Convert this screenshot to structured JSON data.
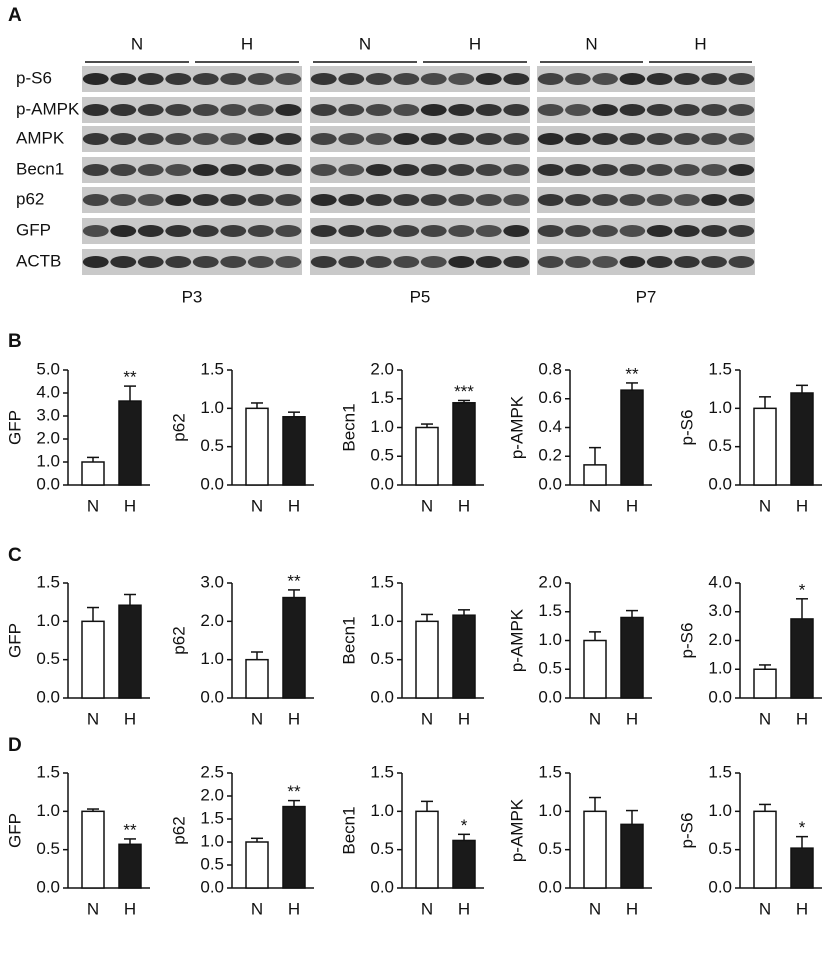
{
  "panel_a": {
    "label": "A",
    "groups": [
      "N",
      "H",
      "N",
      "H",
      "N",
      "H"
    ],
    "rows": [
      "p-S6",
      "p-AMPK",
      "AMPK",
      "Becn1",
      "p62",
      "GFP",
      "ACTB"
    ],
    "timepoints": [
      "P3",
      "P5",
      "P7"
    ]
  },
  "panel_labels": [
    "B",
    "C",
    "D"
  ],
  "chart_data": [
    {
      "type": "bar",
      "ylabel": "GFP",
      "categories": [
        "N",
        "H"
      ],
      "values": [
        1.0,
        3.65
      ],
      "errors": [
        0.2,
        0.65
      ],
      "annotations": [
        null,
        "**"
      ],
      "colors": [
        "#ffffff",
        "#1a1a1a"
      ],
      "ylim": [
        0,
        5
      ],
      "yticks": [
        {
          "value": 0,
          "label": "0.0"
        },
        {
          "value": 1,
          "label": "1.0"
        },
        {
          "value": 2,
          "label": "2.0"
        },
        {
          "value": 3,
          "label": "3.0"
        },
        {
          "value": 4,
          "label": "4.0"
        },
        {
          "value": 5,
          "label": "5.0"
        }
      ]
    },
    {
      "type": "bar",
      "ylabel": "p62",
      "categories": [
        "N",
        "H"
      ],
      "values": [
        1.0,
        0.89
      ],
      "errors": [
        0.07,
        0.06
      ],
      "colors": [
        "#ffffff",
        "#1a1a1a"
      ],
      "ylim": [
        0,
        1.5
      ],
      "yticks": [
        {
          "value": 0,
          "label": "0.0"
        },
        0.5,
        {
          "value": 1,
          "label": "1.0"
        },
        1.5
      ]
    },
    {
      "type": "bar",
      "ylabel": "Becn1",
      "categories": [
        "N",
        "H"
      ],
      "values": [
        1.0,
        1.43
      ],
      "errors": [
        0.06,
        0.04
      ],
      "annotations": [
        null,
        "***"
      ],
      "colors": [
        "#ffffff",
        "#1a1a1a"
      ],
      "ylim": [
        0,
        2
      ],
      "yticks": [
        {
          "value": 0,
          "label": "0.0"
        },
        0.5,
        {
          "value": 1,
          "label": "1.0"
        },
        1.5,
        {
          "value": 2,
          "label": "2.0"
        }
      ]
    },
    {
      "type": "bar",
      "ylabel": "p-AMPK",
      "categories": [
        "N",
        "H"
      ],
      "values": [
        0.14,
        0.66
      ],
      "errors": [
        0.12,
        0.05
      ],
      "annotations": [
        null,
        "**"
      ],
      "colors": [
        "#ffffff",
        "#1a1a1a"
      ],
      "ylim": [
        0,
        0.8
      ],
      "yticks": [
        {
          "value": 0,
          "label": "0.0"
        },
        0.2,
        0.4,
        0.6,
        0.8
      ]
    },
    {
      "type": "bar",
      "ylabel": "p-S6",
      "categories": [
        "N",
        "H"
      ],
      "values": [
        1.0,
        1.2
      ],
      "errors": [
        0.15,
        0.1
      ],
      "colors": [
        "#ffffff",
        "#1a1a1a"
      ],
      "ylim": [
        0,
        1.5
      ],
      "yticks": [
        {
          "value": 0,
          "label": "0.0"
        },
        0.5,
        {
          "value": 1,
          "label": "1.0"
        },
        1.5
      ]
    },
    {
      "type": "bar",
      "ylabel": "GFP",
      "categories": [
        "N",
        "H"
      ],
      "values": [
        1.0,
        1.21
      ],
      "errors": [
        0.18,
        0.14
      ],
      "colors": [
        "#ffffff",
        "#1a1a1a"
      ],
      "ylim": [
        0,
        1.5
      ],
      "yticks": [
        {
          "value": 0,
          "label": "0.0"
        },
        0.5,
        {
          "value": 1,
          "label": "1.0"
        },
        1.5
      ]
    },
    {
      "type": "bar",
      "ylabel": "p62",
      "categories": [
        "N",
        "H"
      ],
      "values": [
        1.0,
        2.62
      ],
      "errors": [
        0.2,
        0.2
      ],
      "annotations": [
        null,
        "**"
      ],
      "colors": [
        "#ffffff",
        "#1a1a1a"
      ],
      "ylim": [
        0,
        3
      ],
      "yticks": [
        {
          "value": 0,
          "label": "0.0"
        },
        {
          "value": 1,
          "label": "1.0"
        },
        {
          "value": 2,
          "label": "2.0"
        },
        {
          "value": 3,
          "label": "3.0"
        }
      ]
    },
    {
      "type": "bar",
      "ylabel": "Becn1",
      "categories": [
        "N",
        "H"
      ],
      "values": [
        1.0,
        1.08
      ],
      "errors": [
        0.09,
        0.07
      ],
      "colors": [
        "#ffffff",
        "#1a1a1a"
      ],
      "ylim": [
        0,
        1.5
      ],
      "yticks": [
        {
          "value": 0,
          "label": "0.0"
        },
        0.5,
        {
          "value": 1,
          "label": "1.0"
        },
        1.5
      ]
    },
    {
      "type": "bar",
      "ylabel": "p-AMPK",
      "categories": [
        "N",
        "H"
      ],
      "values": [
        1.0,
        1.4
      ],
      "errors": [
        0.15,
        0.12
      ],
      "colors": [
        "#ffffff",
        "#1a1a1a"
      ],
      "ylim": [
        0,
        2
      ],
      "yticks": [
        {
          "value": 0,
          "label": "0.0"
        },
        0.5,
        {
          "value": 1,
          "label": "1.0"
        },
        1.5,
        {
          "value": 2,
          "label": "2.0"
        }
      ]
    },
    {
      "type": "bar",
      "ylabel": "p-S6",
      "categories": [
        "N",
        "H"
      ],
      "values": [
        1.0,
        2.75
      ],
      "errors": [
        0.15,
        0.7
      ],
      "annotations": [
        null,
        "*"
      ],
      "colors": [
        "#ffffff",
        "#1a1a1a"
      ],
      "ylim": [
        0,
        4
      ],
      "yticks": [
        {
          "value": 0,
          "label": "0.0"
        },
        {
          "value": 1,
          "label": "1.0"
        },
        {
          "value": 2,
          "label": "2.0"
        },
        {
          "value": 3,
          "label": "3.0"
        },
        {
          "value": 4,
          "label": "4.0"
        }
      ]
    },
    {
      "type": "bar",
      "ylabel": "GFP",
      "categories": [
        "N",
        "H"
      ],
      "values": [
        1.0,
        0.57
      ],
      "errors": [
        0.03,
        0.07
      ],
      "annotations": [
        null,
        "**"
      ],
      "colors": [
        "#ffffff",
        "#1a1a1a"
      ],
      "ylim": [
        0,
        1.5
      ],
      "yticks": [
        {
          "value": 0,
          "label": "0.0"
        },
        0.5,
        {
          "value": 1,
          "label": "1.0"
        },
        1.5
      ]
    },
    {
      "type": "bar",
      "ylabel": "p62",
      "categories": [
        "N",
        "H"
      ],
      "values": [
        1.0,
        1.77
      ],
      "errors": [
        0.08,
        0.13
      ],
      "annotations": [
        null,
        "**"
      ],
      "colors": [
        "#ffffff",
        "#1a1a1a"
      ],
      "ylim": [
        0,
        2.5
      ],
      "yticks": [
        {
          "value": 0,
          "label": "0.0"
        },
        0.5,
        {
          "value": 1,
          "label": "1.0"
        },
        1.5,
        {
          "value": 2,
          "label": "2.0"
        },
        2.5
      ]
    },
    {
      "type": "bar",
      "ylabel": "Becn1",
      "categories": [
        "N",
        "H"
      ],
      "values": [
        1.0,
        0.62
      ],
      "errors": [
        0.13,
        0.08
      ],
      "annotations": [
        null,
        "*"
      ],
      "colors": [
        "#ffffff",
        "#1a1a1a"
      ],
      "ylim": [
        0,
        1.5
      ],
      "yticks": [
        {
          "value": 0,
          "label": "0.0"
        },
        0.5,
        {
          "value": 1,
          "label": "1.0"
        },
        1.5
      ]
    },
    {
      "type": "bar",
      "ylabel": "p-AMPK",
      "categories": [
        "N",
        "H"
      ],
      "values": [
        1.0,
        0.83
      ],
      "errors": [
        0.18,
        0.18
      ],
      "colors": [
        "#ffffff",
        "#1a1a1a"
      ],
      "ylim": [
        0,
        1.5
      ],
      "yticks": [
        {
          "value": 0,
          "label": "0.0"
        },
        0.5,
        {
          "value": 1,
          "label": "1.0"
        },
        1.5
      ]
    },
    {
      "type": "bar",
      "ylabel": "p-S6",
      "categories": [
        "N",
        "H"
      ],
      "values": [
        1.0,
        0.52
      ],
      "errors": [
        0.09,
        0.15
      ],
      "annotations": [
        null,
        "*"
      ],
      "colors": [
        "#ffffff",
        "#1a1a1a"
      ],
      "ylim": [
        0,
        1.5
      ],
      "yticks": [
        {
          "value": 0,
          "label": "0.0"
        },
        0.5,
        {
          "value": 1,
          "label": "1.0"
        },
        1.5
      ]
    }
  ]
}
